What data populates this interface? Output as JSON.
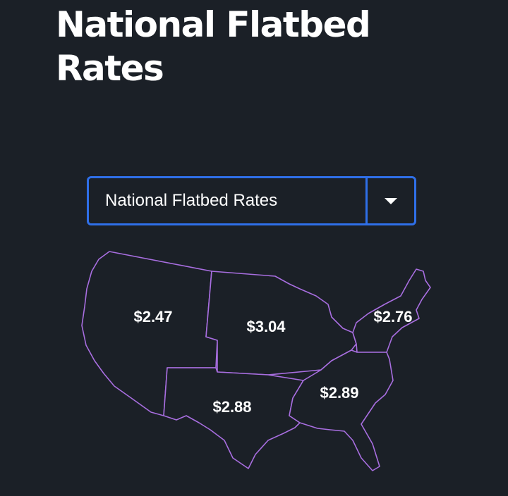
{
  "page": {
    "title": "National Flatbed Rates"
  },
  "region_select": {
    "selected": "National Flatbed Rates"
  },
  "map": {
    "outline_color": "#a86ee0",
    "accent_color": "#2f6fe8",
    "regions": [
      {
        "id": "west",
        "rate": "$2.47"
      },
      {
        "id": "midwest",
        "rate": "$3.04"
      },
      {
        "id": "northeast",
        "rate": "$2.76"
      },
      {
        "id": "southwest",
        "rate": "$2.88"
      },
      {
        "id": "southeast",
        "rate": "$2.89"
      }
    ]
  }
}
